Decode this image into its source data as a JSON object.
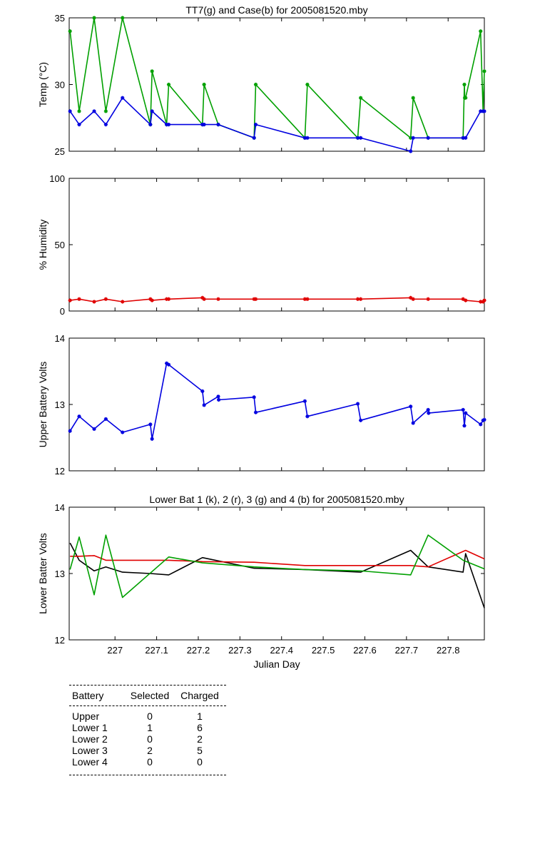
{
  "charts": [
    {
      "id": "temp",
      "type": "line",
      "title": "TT7(g) and Case(b) for 2005081520.mby",
      "ylabel": "Temp  (°C)",
      "xlabel": "",
      "xlim": [
        226.89,
        227.887
      ],
      "ylim": [
        25,
        35
      ],
      "yticks": [
        25,
        30,
        35
      ],
      "xticks": [
        227,
        227.1,
        227.2,
        227.3,
        227.4,
        227.5,
        227.6,
        227.7,
        227.8
      ],
      "show_xtick_labels": false,
      "grid": false,
      "series": [
        {
          "color": "#00a000",
          "markers": true,
          "x": [
            226.892,
            226.914,
            226.95,
            226.978,
            227.018,
            227.085,
            227.089,
            227.124,
            227.129,
            227.21,
            227.214,
            227.248,
            227.334,
            227.338,
            227.456,
            227.462,
            227.583,
            227.59,
            227.71,
            227.716,
            227.752,
            227.836,
            227.839,
            227.84,
            227.842,
            227.878,
            227.884,
            227.887
          ],
          "y": [
            34,
            28,
            35,
            28,
            35,
            27,
            31,
            27,
            30,
            27,
            30,
            27,
            26,
            30,
            26,
            30,
            26,
            29,
            26,
            29,
            26,
            26,
            30,
            29,
            29,
            34,
            28,
            31
          ]
        },
        {
          "color": "#0000e0",
          "markers": true,
          "x": [
            226.892,
            226.914,
            226.95,
            226.978,
            227.018,
            227.085,
            227.089,
            227.124,
            227.129,
            227.21,
            227.214,
            227.248,
            227.334,
            227.338,
            227.456,
            227.462,
            227.583,
            227.59,
            227.71,
            227.716,
            227.752,
            227.836,
            227.842,
            227.878,
            227.884,
            227.887
          ],
          "y": [
            28,
            27,
            28,
            27,
            29,
            27,
            28,
            27,
            27,
            27,
            27,
            27,
            26,
            27,
            26,
            26,
            26,
            26,
            25,
            26,
            26,
            26,
            26,
            28,
            28,
            28
          ]
        }
      ]
    },
    {
      "id": "humidity",
      "type": "line",
      "title": "",
      "ylabel": "% Humidity",
      "xlabel": "",
      "xlim": [
        226.89,
        227.887
      ],
      "ylim": [
        0,
        100
      ],
      "yticks": [
        0,
        50,
        100
      ],
      "xticks": [
        227,
        227.1,
        227.2,
        227.3,
        227.4,
        227.5,
        227.6,
        227.7,
        227.8
      ],
      "show_xtick_labels": false,
      "grid": false,
      "series": [
        {
          "color": "#e00000",
          "markers": true,
          "x": [
            226.892,
            226.914,
            226.95,
            226.978,
            227.018,
            227.085,
            227.089,
            227.124,
            227.129,
            227.21,
            227.214,
            227.248,
            227.334,
            227.338,
            227.456,
            227.462,
            227.583,
            227.59,
            227.71,
            227.716,
            227.752,
            227.836,
            227.842,
            227.878,
            227.884,
            227.887
          ],
          "y": [
            8,
            9,
            7,
            9,
            7,
            9,
            8,
            9,
            9,
            10,
            9,
            9,
            9,
            9,
            9,
            9,
            9,
            9,
            10,
            9,
            9,
            9,
            8,
            7,
            7,
            8
          ]
        }
      ]
    },
    {
      "id": "upper",
      "type": "line",
      "title": "",
      "ylabel": "Upper Battery Volts",
      "xlabel": "",
      "xlim": [
        226.89,
        227.887
      ],
      "ylim": [
        12,
        14
      ],
      "yticks": [
        12,
        13,
        14
      ],
      "xticks": [
        227,
        227.1,
        227.2,
        227.3,
        227.4,
        227.5,
        227.6,
        227.7,
        227.8
      ],
      "show_xtick_labels": false,
      "grid": false,
      "series": [
        {
          "color": "#0000e0",
          "markers": true,
          "x": [
            226.892,
            226.914,
            226.95,
            226.978,
            227.018,
            227.085,
            227.089,
            227.124,
            227.129,
            227.21,
            227.214,
            227.248,
            227.249,
            227.334,
            227.338,
            227.456,
            227.462,
            227.583,
            227.59,
            227.71,
            227.716,
            227.752,
            227.753,
            227.836,
            227.839,
            227.842,
            227.878,
            227.884,
            227.887
          ],
          "y": [
            12.6,
            12.82,
            12.63,
            12.78,
            12.58,
            12.7,
            12.48,
            13.62,
            13.6,
            13.2,
            12.99,
            13.12,
            13.07,
            13.11,
            12.88,
            13.05,
            12.82,
            13.01,
            12.76,
            12.97,
            12.72,
            12.92,
            12.87,
            12.92,
            12.68,
            12.87,
            12.7,
            12.76,
            12.77
          ]
        }
      ]
    },
    {
      "id": "lower",
      "type": "line",
      "title": "Lower Bat 1 (k), 2 (r), 3 (g) and 4 (b) for 2005081520.mby",
      "ylabel": "Lower Batter Volts",
      "xlabel": "Julian Day",
      "xlim": [
        226.89,
        227.887
      ],
      "ylim": [
        12,
        14
      ],
      "yticks": [
        12,
        13,
        14
      ],
      "xticks": [
        227,
        227.1,
        227.2,
        227.3,
        227.4,
        227.5,
        227.6,
        227.7,
        227.8
      ],
      "show_xtick_labels": true,
      "grid": false,
      "series": [
        {
          "color": "#000000",
          "markers": false,
          "x": [
            226.892,
            226.914,
            226.95,
            226.978,
            227.018,
            227.085,
            227.129,
            227.21,
            227.334,
            227.456,
            227.59,
            227.71,
            227.752,
            227.836,
            227.842,
            227.887
          ],
          "y": [
            13.46,
            13.2,
            13.04,
            13.1,
            13.02,
            13.0,
            12.98,
            13.24,
            13.08,
            13.06,
            13.02,
            13.35,
            13.1,
            13.02,
            13.3,
            12.48
          ]
        },
        {
          "color": "#e00000",
          "markers": false,
          "x": [
            226.892,
            226.914,
            226.95,
            226.978,
            227.129,
            227.21,
            227.334,
            227.456,
            227.59,
            227.71,
            227.752,
            227.842,
            227.887
          ],
          "y": [
            13.26,
            13.26,
            13.27,
            13.2,
            13.2,
            13.18,
            13.17,
            13.12,
            13.12,
            13.12,
            13.1,
            13.35,
            13.22
          ]
        },
        {
          "color": "#00a000",
          "markers": false,
          "x": [
            226.892,
            226.914,
            226.95,
            226.978,
            227.018,
            227.129,
            227.21,
            227.334,
            227.456,
            227.59,
            227.71,
            227.752,
            227.836,
            227.887
          ],
          "y": [
            13.06,
            13.55,
            12.68,
            13.58,
            12.64,
            13.25,
            13.16,
            13.1,
            13.06,
            13.04,
            12.98,
            13.58,
            13.2,
            13.07
          ]
        }
      ]
    }
  ],
  "table": {
    "headers": [
      "Battery",
      "Selected",
      "Charged"
    ],
    "rows": [
      [
        "Upper",
        "0",
        "1"
      ],
      [
        "Lower 1",
        "1",
        "6"
      ],
      [
        "Lower 2",
        "0",
        "2"
      ],
      [
        "Lower 3",
        "2",
        "5"
      ],
      [
        "Lower 4",
        "0",
        "0"
      ]
    ]
  }
}
